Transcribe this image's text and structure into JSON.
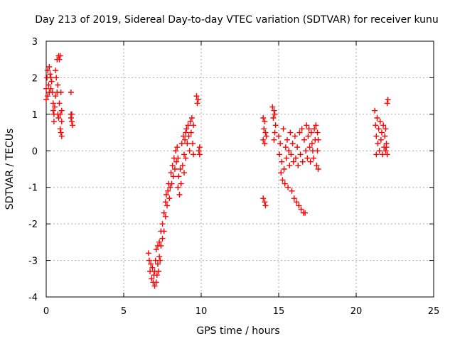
{
  "chart_data": {
    "type": "scatter",
    "title": "Day 213 of 2019, Sidereal Day-to-day VTEC variation (SDTVAR) for receiver kunu",
    "xlabel": "GPS time / hours",
    "ylabel": "SDTVAR / TECUs",
    "xlim": [
      0,
      25
    ],
    "ylim": [
      -4,
      3
    ],
    "xticks": [
      "0",
      "5",
      "10",
      "15",
      "20",
      "25"
    ],
    "yticks": [
      "-4",
      "-3",
      "-2",
      "-1",
      "0",
      "1",
      "2",
      "3"
    ],
    "grid": true,
    "marker": "+",
    "color": "#ff0000",
    "series": [
      {
        "points": [
          [
            0.0,
            1.4
          ],
          [
            0.0,
            1.7
          ],
          [
            0.05,
            2.0
          ],
          [
            0.1,
            1.5
          ],
          [
            0.1,
            2.2
          ],
          [
            0.15,
            1.8
          ],
          [
            0.2,
            2.3
          ],
          [
            0.2,
            1.6
          ],
          [
            0.25,
            2.1
          ],
          [
            0.3,
            1.7
          ],
          [
            0.3,
            2.0
          ],
          [
            0.35,
            1.9
          ],
          [
            0.4,
            1.6
          ],
          [
            0.45,
            1.3
          ],
          [
            0.45,
            1.1
          ],
          [
            0.5,
            1.0
          ],
          [
            0.5,
            0.8
          ],
          [
            0.55,
            1.2
          ],
          [
            0.6,
            2.2
          ],
          [
            0.6,
            1.5
          ],
          [
            0.65,
            2.0
          ],
          [
            0.7,
            1.6
          ],
          [
            0.7,
            2.5
          ],
          [
            0.75,
            1.8
          ],
          [
            0.75,
            1.0
          ],
          [
            0.8,
            2.6
          ],
          [
            0.8,
            0.9
          ],
          [
            0.85,
            2.5
          ],
          [
            0.85,
            1.3
          ],
          [
            0.9,
            2.6
          ],
          [
            0.9,
            1.0
          ],
          [
            0.9,
            0.6
          ],
          [
            0.95,
            1.6
          ],
          [
            0.95,
            0.5
          ],
          [
            1.0,
            1.1
          ],
          [
            1.0,
            0.8
          ],
          [
            1.0,
            0.4
          ],
          [
            1.6,
            1.6
          ],
          [
            1.6,
            1.0
          ],
          [
            1.6,
            0.9
          ],
          [
            1.65,
            0.8
          ],
          [
            1.65,
            1.0
          ],
          [
            1.7,
            0.7
          ],
          [
            6.6,
            -2.8
          ],
          [
            6.65,
            -3.0
          ],
          [
            6.7,
            -3.3
          ],
          [
            6.75,
            -3.1
          ],
          [
            6.8,
            -3.5
          ],
          [
            6.85,
            -3.2
          ],
          [
            6.9,
            -3.6
          ],
          [
            6.95,
            -3.4
          ],
          [
            7.0,
            -3.7
          ],
          [
            7.0,
            -3.3
          ],
          [
            7.05,
            -3.0
          ],
          [
            7.1,
            -3.6
          ],
          [
            7.1,
            -2.7
          ],
          [
            7.15,
            -3.4
          ],
          [
            7.2,
            -3.1
          ],
          [
            7.2,
            -2.6
          ],
          [
            7.25,
            -3.3
          ],
          [
            7.3,
            -2.9
          ],
          [
            7.3,
            -2.5
          ],
          [
            7.35,
            -3.0
          ],
          [
            7.4,
            -2.6
          ],
          [
            7.4,
            -2.2
          ],
          [
            7.5,
            -2.4
          ],
          [
            7.5,
            -2.0
          ],
          [
            7.6,
            -2.2
          ],
          [
            7.6,
            -1.7
          ],
          [
            7.7,
            -1.8
          ],
          [
            7.7,
            -1.4
          ],
          [
            7.75,
            -1.2
          ],
          [
            7.8,
            -1.5
          ],
          [
            7.85,
            -1.1
          ],
          [
            7.9,
            -0.9
          ],
          [
            7.95,
            -1.3
          ],
          [
            8.0,
            -1.0
          ],
          [
            8.05,
            -0.6
          ],
          [
            8.1,
            -0.9
          ],
          [
            8.15,
            -0.4
          ],
          [
            8.2,
            -0.7
          ],
          [
            8.25,
            -0.2
          ],
          [
            8.3,
            -0.5
          ],
          [
            8.35,
            0.0
          ],
          [
            8.4,
            -0.3
          ],
          [
            8.45,
            0.1
          ],
          [
            8.5,
            -0.2
          ],
          [
            8.5,
            -1.0
          ],
          [
            8.55,
            -0.7
          ],
          [
            8.6,
            -1.2
          ],
          [
            8.65,
            -0.5
          ],
          [
            8.7,
            -0.9
          ],
          [
            8.75,
            0.2
          ],
          [
            8.8,
            -0.4
          ],
          [
            8.85,
            0.4
          ],
          [
            8.9,
            -0.1
          ],
          [
            8.9,
            -0.6
          ],
          [
            8.95,
            0.3
          ],
          [
            9.0,
            0.5
          ],
          [
            9.0,
            -0.2
          ],
          [
            9.05,
            0.6
          ],
          [
            9.1,
            0.2
          ],
          [
            9.15,
            0.7
          ],
          [
            9.2,
            0.4
          ],
          [
            9.25,
            0.0
          ],
          [
            9.3,
            0.8
          ],
          [
            9.35,
            0.5
          ],
          [
            9.4,
            0.9
          ],
          [
            9.45,
            0.2
          ],
          [
            9.5,
            0.7
          ],
          [
            9.5,
            -0.1
          ],
          [
            9.7,
            1.5
          ],
          [
            9.75,
            1.3
          ],
          [
            9.8,
            1.4
          ],
          [
            9.85,
            0.0
          ],
          [
            9.9,
            -0.1
          ],
          [
            9.9,
            0.1
          ],
          [
            14.0,
            0.9
          ],
          [
            14.0,
            0.3
          ],
          [
            14.05,
            0.6
          ],
          [
            14.1,
            0.8
          ],
          [
            14.1,
            0.2
          ],
          [
            14.15,
            0.5
          ],
          [
            14.2,
            0.4
          ],
          [
            14.0,
            -1.3
          ],
          [
            14.1,
            -1.4
          ],
          [
            14.15,
            -1.5
          ],
          [
            14.6,
            1.2
          ],
          [
            14.65,
            0.9
          ],
          [
            14.7,
            1.1
          ],
          [
            14.75,
            1.0
          ],
          [
            14.8,
            0.7
          ],
          [
            14.7,
            0.3
          ],
          [
            14.75,
            0.5
          ],
          [
            15.0,
            0.4
          ],
          [
            15.05,
            -0.1
          ],
          [
            15.1,
            0.2
          ],
          [
            15.15,
            -0.6
          ],
          [
            15.2,
            -0.3
          ],
          [
            15.25,
            -0.8
          ],
          [
            15.3,
            0.6
          ],
          [
            15.35,
            -0.5
          ],
          [
            15.4,
            -0.9
          ],
          [
            15.45,
            0.1
          ],
          [
            15.5,
            -0.2
          ],
          [
            15.55,
            0.3
          ],
          [
            15.6,
            -1.0
          ],
          [
            15.65,
            0.0
          ],
          [
            15.7,
            -0.4
          ],
          [
            15.75,
            0.5
          ],
          [
            15.8,
            -0.1
          ],
          [
            15.85,
            -1.1
          ],
          [
            15.9,
            0.2
          ],
          [
            15.95,
            -0.3
          ],
          [
            16.0,
            -1.3
          ],
          [
            16.05,
            0.4
          ],
          [
            16.1,
            -0.2
          ],
          [
            16.15,
            -1.4
          ],
          [
            16.2,
            0.1
          ],
          [
            16.25,
            -0.4
          ],
          [
            16.3,
            -1.5
          ],
          [
            16.35,
            0.5
          ],
          [
            16.4,
            -0.1
          ],
          [
            16.45,
            -1.6
          ],
          [
            16.5,
            0.6
          ],
          [
            16.55,
            -0.3
          ],
          [
            16.6,
            -1.7
          ],
          [
            16.65,
            0.3
          ],
          [
            16.7,
            -1.7
          ],
          [
            16.75,
            0.0
          ],
          [
            16.8,
            0.7
          ],
          [
            16.85,
            -0.2
          ],
          [
            16.9,
            0.4
          ],
          [
            16.95,
            0.6
          ],
          [
            17.0,
            0.1
          ],
          [
            17.05,
            -0.3
          ],
          [
            17.1,
            0.5
          ],
          [
            17.15,
            0.2
          ],
          [
            17.2,
            0.0
          ],
          [
            17.25,
            -0.2
          ],
          [
            17.3,
            0.6
          ],
          [
            17.35,
            0.3
          ],
          [
            17.4,
            0.7
          ],
          [
            17.45,
            -0.4
          ],
          [
            17.5,
            0.5
          ],
          [
            17.5,
            0.0
          ],
          [
            17.55,
            -0.5
          ],
          [
            17.55,
            0.3
          ],
          [
            21.2,
            1.1
          ],
          [
            21.25,
            0.7
          ],
          [
            21.3,
            0.4
          ],
          [
            21.3,
            -0.1
          ],
          [
            21.35,
            0.9
          ],
          [
            21.4,
            0.2
          ],
          [
            21.45,
            0.6
          ],
          [
            21.5,
            0.0
          ],
          [
            21.55,
            0.8
          ],
          [
            21.6,
            0.3
          ],
          [
            21.65,
            0.5
          ],
          [
            21.7,
            -0.1
          ],
          [
            21.75,
            0.7
          ],
          [
            21.8,
            0.1
          ],
          [
            21.85,
            0.4
          ],
          [
            21.9,
            0.0
          ],
          [
            21.9,
            0.6
          ],
          [
            21.95,
            0.2
          ],
          [
            22.0,
            1.3
          ],
          [
            22.05,
            1.4
          ],
          [
            22.0,
            -0.1
          ],
          [
            21.95,
            0.1
          ]
        ]
      }
    ]
  }
}
